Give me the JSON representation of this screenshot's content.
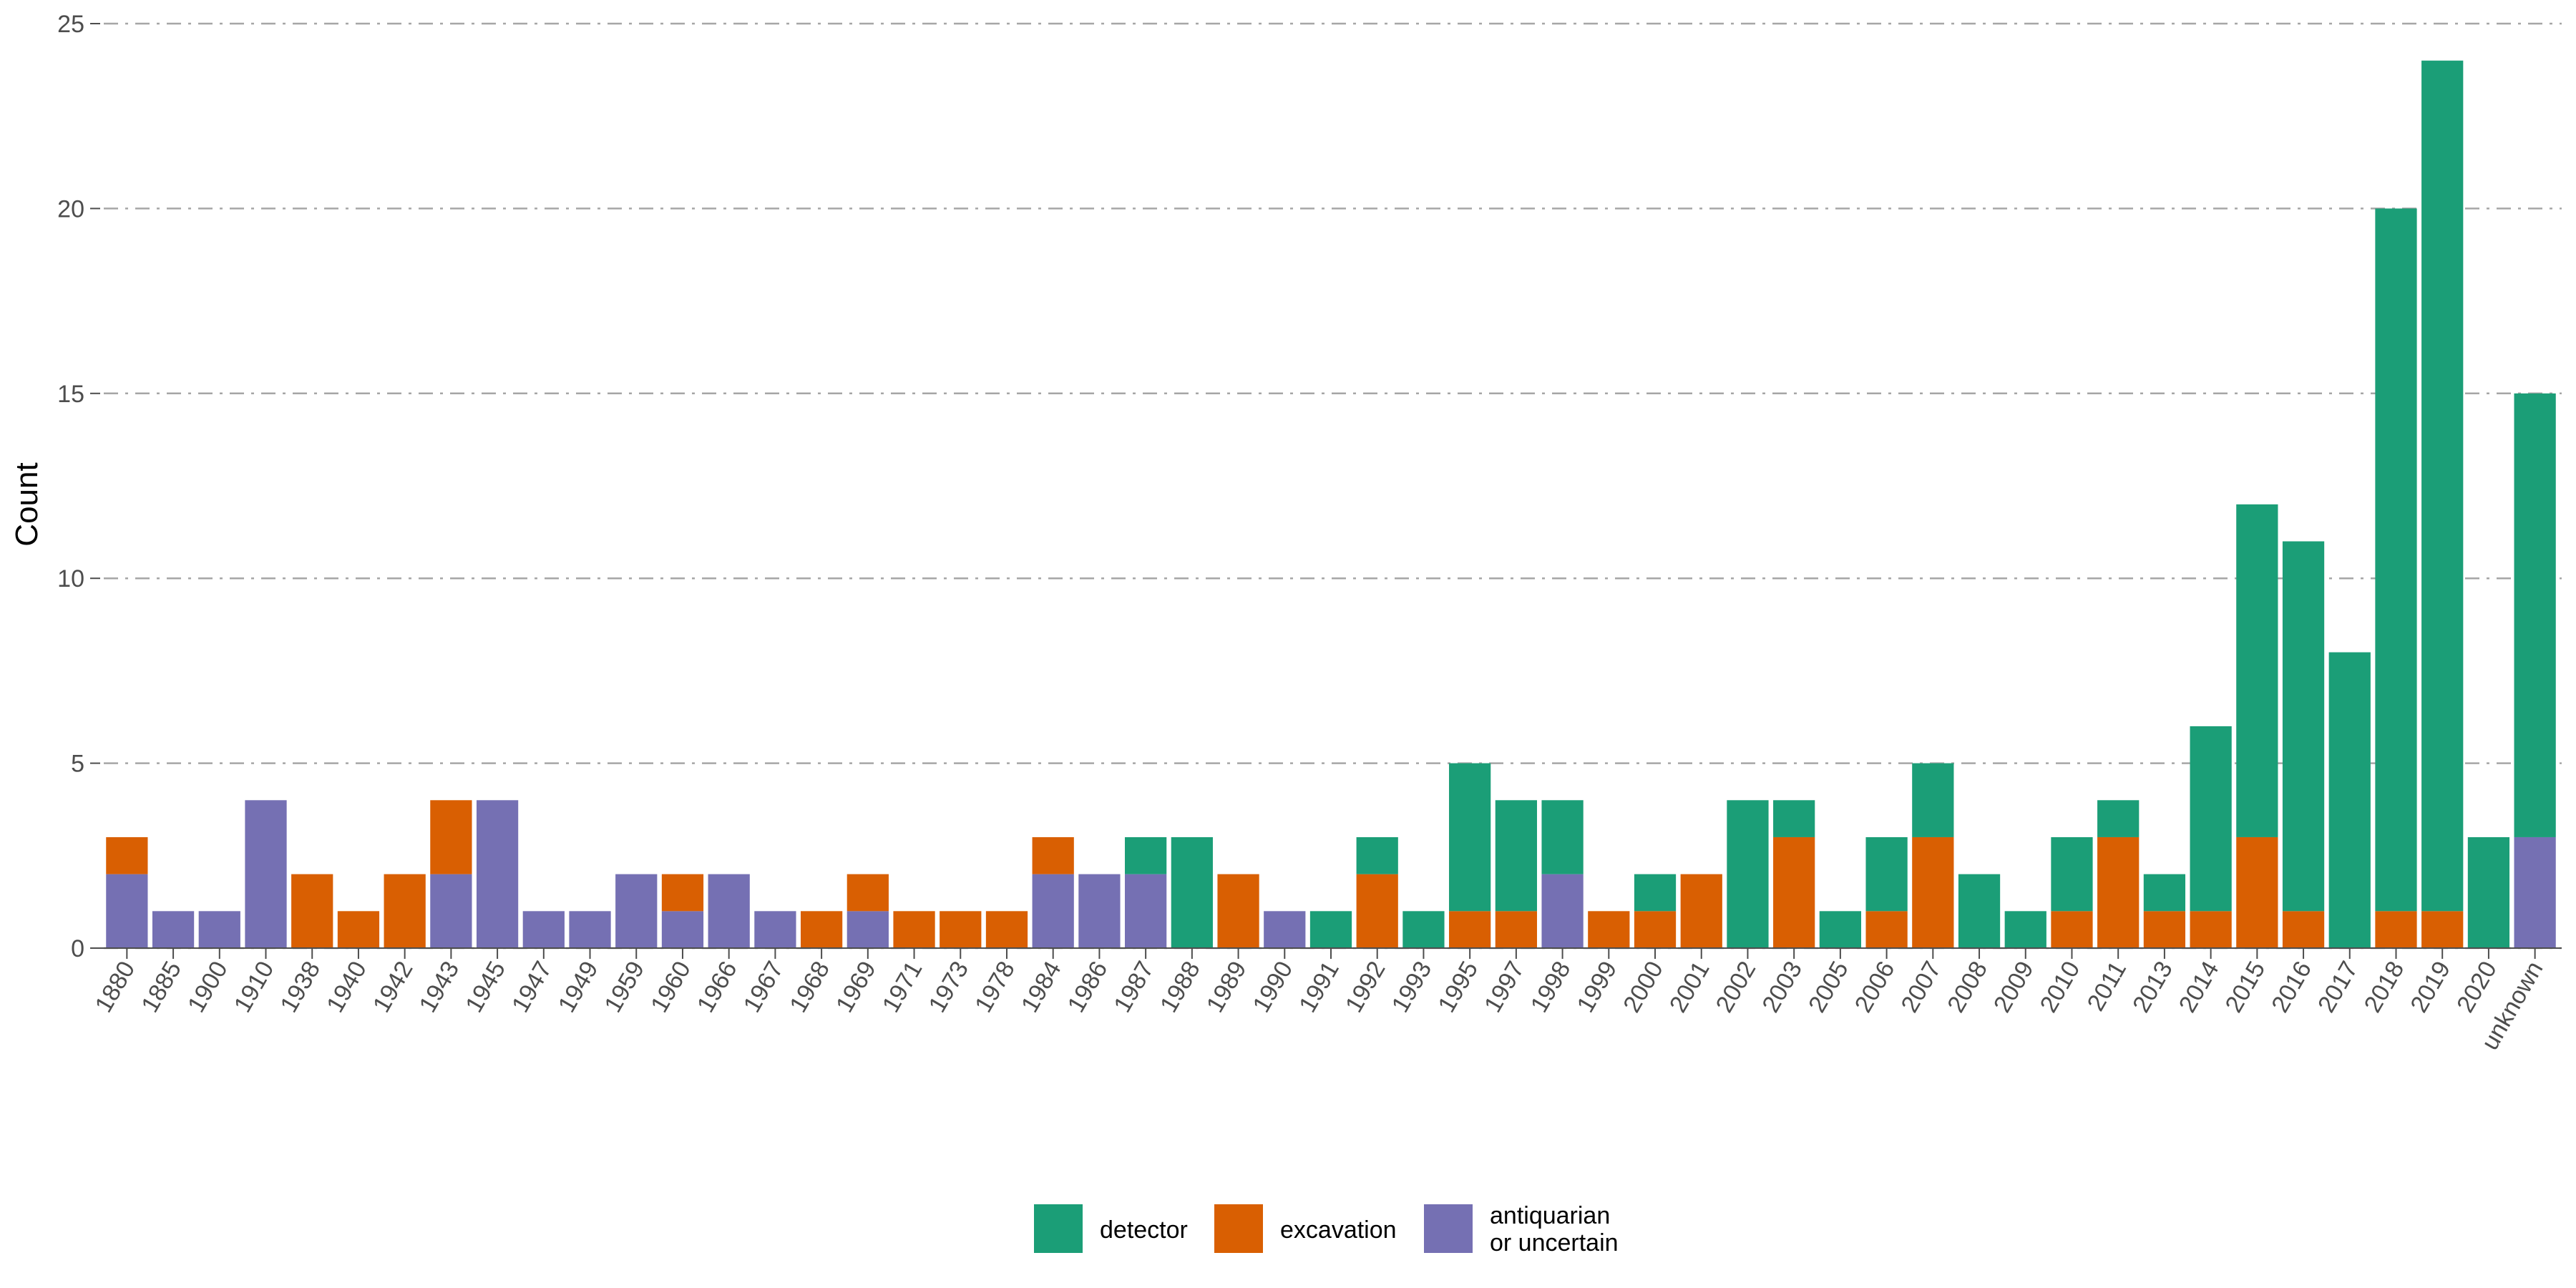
{
  "chart_data": {
    "type": "bar",
    "stacked": true,
    "title": "",
    "xlabel": "",
    "ylabel": "Count",
    "ylim": [
      0,
      25
    ],
    "yticks": [
      0,
      5,
      10,
      15,
      20,
      25
    ],
    "grid": "horizontal dashed",
    "legend_position": "bottom",
    "categories": [
      "1880",
      "1885",
      "1900",
      "1910",
      "1938",
      "1940",
      "1942",
      "1943",
      "1945",
      "1947",
      "1949",
      "1959",
      "1960",
      "1966",
      "1967",
      "1968",
      "1969",
      "1971",
      "1973",
      "1978",
      "1984",
      "1986",
      "1987",
      "1988",
      "1989",
      "1990",
      "1991",
      "1992",
      "1993",
      "1995",
      "1997",
      "1998",
      "1999",
      "2000",
      "2001",
      "2002",
      "2003",
      "2005",
      "2006",
      "2007",
      "2008",
      "2009",
      "2010",
      "2011",
      "2013",
      "2014",
      "2015",
      "2016",
      "2017",
      "2018",
      "2019",
      "2020",
      "unknown"
    ],
    "series": [
      {
        "name": "antiquarian\nor uncertain",
        "color": "#7570B3",
        "values": [
          2,
          1,
          1,
          4,
          0,
          0,
          0,
          2,
          4,
          1,
          1,
          2,
          1,
          2,
          1,
          0,
          1,
          0,
          0,
          0,
          2,
          2,
          2,
          0,
          0,
          1,
          0,
          0,
          0,
          0,
          0,
          2,
          0,
          0,
          0,
          0,
          0,
          0,
          0,
          0,
          0,
          0,
          0,
          0,
          0,
          0,
          0,
          0,
          0,
          0,
          0,
          0,
          3
        ]
      },
      {
        "name": "excavation",
        "color": "#D95F02",
        "values": [
          1,
          0,
          0,
          0,
          2,
          1,
          2,
          2,
          0,
          0,
          0,
          0,
          1,
          0,
          0,
          1,
          1,
          1,
          1,
          1,
          1,
          0,
          0,
          0,
          2,
          0,
          0,
          2,
          0,
          1,
          1,
          0,
          1,
          1,
          2,
          0,
          3,
          0,
          1,
          3,
          0,
          0,
          1,
          3,
          1,
          1,
          3,
          1,
          0,
          1,
          1,
          0,
          0
        ]
      },
      {
        "name": "detector",
        "color": "#1B9E77",
        "values": [
          0,
          0,
          0,
          0,
          0,
          0,
          0,
          0,
          0,
          0,
          0,
          0,
          0,
          0,
          0,
          0,
          0,
          0,
          0,
          0,
          0,
          0,
          1,
          3,
          0,
          0,
          1,
          1,
          1,
          4,
          3,
          2,
          0,
          1,
          0,
          4,
          1,
          1,
          2,
          2,
          2,
          1,
          2,
          1,
          1,
          5,
          9,
          10,
          8,
          19,
          23,
          3,
          12
        ]
      }
    ],
    "legend": [
      {
        "label": "detector",
        "color": "#1B9E77"
      },
      {
        "label": "excavation",
        "color": "#D95F02"
      },
      {
        "label": "antiquarian\nor uncertain",
        "color": "#7570B3"
      }
    ]
  }
}
